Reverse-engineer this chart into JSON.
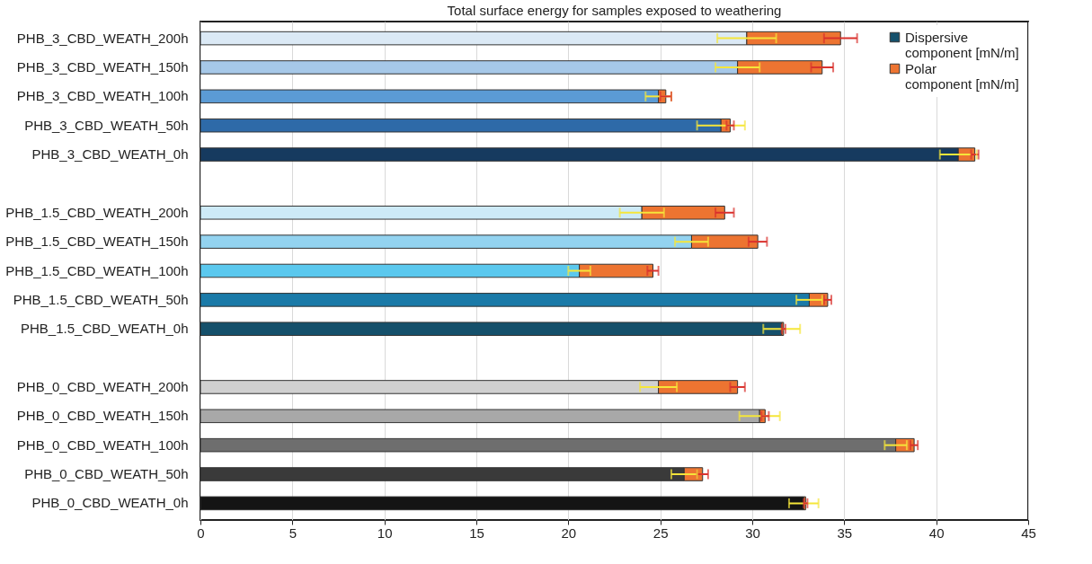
{
  "chart_data": {
    "type": "bar",
    "orientation": "horizontal",
    "stacked": true,
    "title": "Total surface energy for samples exposed to weathering",
    "categories": [
      "PHB_3_CBD_WEATH_200h",
      "PHB_3_CBD_WEATH_150h",
      "PHB_3_CBD_WEATH_100h",
      "PHB_3_CBD_WEATH_50h",
      "PHB_3_CBD_WEATH_0h",
      null,
      "PHB_1.5_CBD_WEATH_200h",
      "PHB_1.5_CBD_WEATH_150h",
      "PHB_1.5_CBD_WEATH_100h",
      "PHB_1.5_CBD_WEATH_50h",
      "PHB_1.5_CBD_WEATH_0h",
      null,
      "PHB_0_CBD_WEATH_200h",
      "PHB_0_CBD_WEATH_150h",
      "PHB_0_CBD_WEATH_100h",
      "PHB_0_CBD_WEATH_50h",
      "PHB_0_CBD_WEATH_0h"
    ],
    "series": [
      {
        "name": "Dispersive component [mN/m]",
        "color": "#15506b",
        "colors": [
          "#dbe9f5",
          "#a6c8e8",
          "#5b9bd5",
          "#2e6aa8",
          "#163a5f",
          null,
          "#cdeaf7",
          "#93d3f0",
          "#5bc8ee",
          "#1a7aa8",
          "#15506b",
          null,
          "#d0d0d0",
          "#a8a8a8",
          "#6e6e6e",
          "#3a3a3a",
          "#141414"
        ],
        "values": [
          29.7,
          29.2,
          24.9,
          28.3,
          41.2,
          null,
          24.0,
          26.7,
          20.6,
          33.1,
          31.6,
          null,
          24.9,
          30.4,
          37.8,
          26.3,
          32.8
        ],
        "errors": [
          1.6,
          1.2,
          0.7,
          1.3,
          1.0,
          null,
          1.2,
          0.9,
          0.6,
          0.7,
          1.0,
          null,
          1.0,
          1.1,
          0.6,
          0.7,
          0.8
        ]
      },
      {
        "name": "Polar component [mN/m]",
        "color": "#ed7431",
        "values": [
          5.1,
          4.6,
          0.4,
          0.5,
          0.9,
          null,
          4.5,
          3.6,
          4.0,
          1.0,
          0.1,
          null,
          4.3,
          0.3,
          1.0,
          1.0,
          0.1
        ],
        "errors": [
          0.9,
          0.6,
          0.3,
          0.2,
          0.2,
          null,
          0.5,
          0.5,
          0.3,
          0.2,
          0.1,
          null,
          0.4,
          0.2,
          0.2,
          0.3,
          0.1
        ]
      }
    ],
    "xlim": [
      0,
      45
    ],
    "xticks": [
      0,
      5,
      10,
      15,
      20,
      25,
      30,
      35,
      40,
      45
    ],
    "grid": "x",
    "legend": "top right"
  }
}
